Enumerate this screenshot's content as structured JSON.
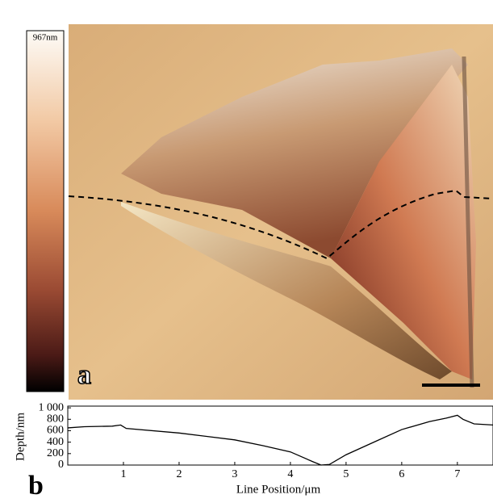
{
  "panel_a": {
    "label": "a",
    "colorbar_label": "967nm"
  },
  "panel_b": {
    "label": "b"
  },
  "chart_data": {
    "type": "line",
    "xlabel": "Line Position/μm",
    "ylabel": "Depth/nm",
    "x": [
      0,
      0.3,
      0.8,
      0.95,
      1.05,
      2,
      3,
      3.5,
      4,
      4.4,
      4.55,
      4.7,
      5,
      5.5,
      6,
      6.5,
      6.8,
      7.0,
      7.1,
      7.3,
      7.64
    ],
    "values": [
      650,
      670,
      680,
      700,
      640,
      560,
      440,
      340,
      230,
      60,
      0,
      10,
      180,
      400,
      620,
      760,
      820,
      870,
      800,
      720,
      700
    ],
    "color": "#000000",
    "xlim": [
      0,
      7.64
    ],
    "xticks": [
      1,
      2,
      3,
      4,
      5,
      6,
      7
    ],
    "ylim": [
      0,
      1030
    ],
    "yticks": [
      0,
      200,
      400,
      600,
      800,
      {
        "value": 1000,
        "label": "1 000"
      }
    ]
  }
}
